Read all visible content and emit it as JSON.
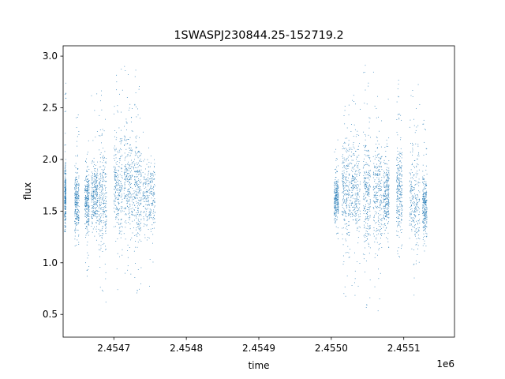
{
  "chart_data": {
    "type": "scatter",
    "title": "1SWASPJ230844.25-152719.2",
    "xlabel": "time",
    "ylabel": "flux",
    "x_offset_label": "1e6",
    "xlim": [
      2454630,
      2455170
    ],
    "ylim": [
      0.28,
      3.1
    ],
    "x_ticks": [
      2454700,
      2454800,
      2454900,
      2455000,
      2455100
    ],
    "x_tick_labels": [
      "2.4547",
      "2.4548",
      "2.4549",
      "2.4550",
      "2.4551"
    ],
    "y_ticks": [
      0.5,
      1.0,
      1.5,
      2.0,
      2.5,
      3.0
    ],
    "y_tick_labels": [
      "0.5",
      "1.0",
      "1.5",
      "2.0",
      "2.5",
      "3.0"
    ],
    "grid": false,
    "marker_color": "#1f77b4",
    "series": [
      {
        "observing_nights": [
          {
            "x": [
              2454632,
              2454634
            ],
            "y_center": 1.62,
            "y_range": [
              1.3,
              2.75
            ]
          },
          {
            "x": [
              2454646,
              2454652
            ],
            "y_center": 1.58,
            "y_range": [
              1.1,
              2.45
            ]
          },
          {
            "x": [
              2454660,
              2454666
            ],
            "y_center": 1.6,
            "y_range": [
              0.85,
              2.2
            ]
          },
          {
            "x": [
              2454669,
              2454678
            ],
            "y_center": 1.65,
            "y_range": [
              1.2,
              2.65
            ]
          },
          {
            "x": [
              2454679,
              2454690
            ],
            "y_center": 1.62,
            "y_range": [
              0.55,
              2.7
            ]
          },
          {
            "x": [
              2454700,
              2454712
            ],
            "y_center": 1.75,
            "y_range": [
              0.65,
              2.9
            ]
          },
          {
            "x": [
              2454714,
              2454726
            ],
            "y_center": 1.8,
            "y_range": [
              0.7,
              3.0
            ]
          },
          {
            "x": [
              2454727,
              2454738
            ],
            "y_center": 1.72,
            "y_range": [
              0.6,
              2.9
            ]
          },
          {
            "x": [
              2454740,
              2454757
            ],
            "y_center": 1.65,
            "y_range": [
              0.75,
              2.3
            ]
          },
          {
            "x": [
              2455004,
              2455010
            ],
            "y_center": 1.62,
            "y_range": [
              1.2,
              2.2
            ]
          },
          {
            "x": [
              2455015,
              2455026
            ],
            "y_center": 1.7,
            "y_range": [
              0.5,
              2.55
            ]
          },
          {
            "x": [
              2455027,
              2455040
            ],
            "y_center": 1.72,
            "y_range": [
              0.6,
              2.7
            ]
          },
          {
            "x": [
              2455044,
              2455054
            ],
            "y_center": 1.7,
            "y_range": [
              0.45,
              2.95
            ]
          },
          {
            "x": [
              2455058,
              2455070
            ],
            "y_center": 1.68,
            "y_range": [
              0.5,
              2.9
            ]
          },
          {
            "x": [
              2455072,
              2455080
            ],
            "y_center": 1.65,
            "y_range": [
              1.1,
              2.6
            ]
          },
          {
            "x": [
              2455090,
              2455098
            ],
            "y_center": 1.7,
            "y_range": [
              0.9,
              2.8
            ]
          },
          {
            "x": [
              2455108,
              2455122
            ],
            "y_center": 1.62,
            "y_range": [
              0.6,
              2.75
            ]
          },
          {
            "x": [
              2455126,
              2455132
            ],
            "y_center": 1.58,
            "y_range": [
              1.05,
              2.4
            ]
          }
        ]
      }
    ]
  }
}
